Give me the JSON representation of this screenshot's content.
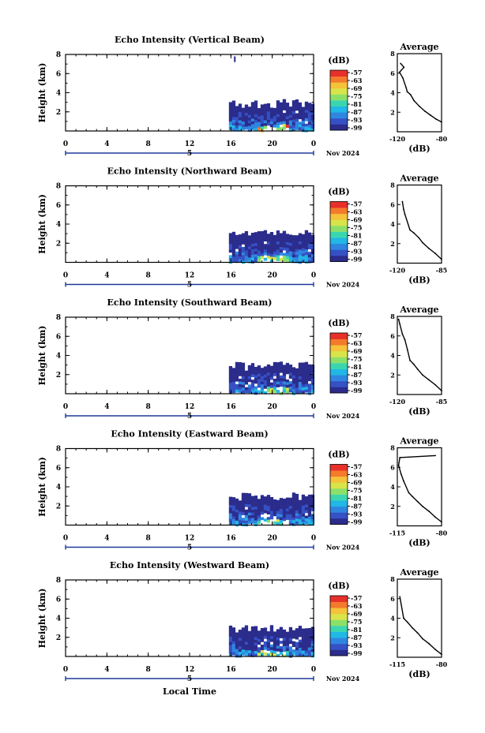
{
  "colors": {
    "scale": [
      "#2b2c8c",
      "#3551c4",
      "#2f86e0",
      "#21b7e6",
      "#3bd6b0",
      "#8ce06a",
      "#d8e44a",
      "#f5c23a",
      "#f47a2c",
      "#e8302a"
    ],
    "text": "#000000",
    "date_bar": "#1f3a9a"
  },
  "shared": {
    "x_ticks": [
      "0",
      "4",
      "8",
      "12",
      "16",
      "20",
      "0"
    ],
    "y_ticks": [
      "2",
      "4",
      "6",
      "8"
    ],
    "ylabel": "Height (km)",
    "colorbar_unit": "(dB)",
    "colorbar_ticks": [
      "-57",
      "-63",
      "-69",
      "-75",
      "-81",
      "-87",
      "-93",
      "-99"
    ],
    "date_label": "Nov 2024",
    "day_label": "5",
    "avg_title": "Average",
    "avg_xlabel": "(dB)",
    "xlabel": "Local Time"
  },
  "chart_data": [
    {
      "type": "heatmap",
      "title": "Echo Intensity (Vertical Beam)",
      "x_unit": "Local time (h)",
      "xlim": [
        0,
        24
      ],
      "ylabel": "Height (km)",
      "ylim": [
        0,
        8
      ],
      "colorbar": {
        "label": "(dB)",
        "range": [
          -99,
          -57
        ]
      },
      "echo_region": {
        "start_time": 15.5,
        "end_time": 24,
        "top_km_range": [
          2.3,
          3.4
        ]
      },
      "isolated_echo": {
        "time": 16.3,
        "height_km": [
          7.2,
          7.8
        ]
      },
      "profile": {
        "title": "Average",
        "xlabel": "(dB)",
        "x_ticks": [
          "-120",
          "-80"
        ],
        "xlim": [
          -120,
          -80
        ],
        "y_ticks": [
          "2",
          "4",
          "6",
          "8"
        ],
        "ylim": [
          0,
          8
        ],
        "points": [
          [
            -80,
            1
          ],
          [
            -85,
            1.3
          ],
          [
            -90,
            1.7
          ],
          [
            -95,
            2.1
          ],
          [
            -100,
            2.6
          ],
          [
            -105,
            3.2
          ],
          [
            -108,
            3.8
          ],
          [
            -111,
            4.1
          ],
          [
            -112,
            4.5
          ],
          [
            -115,
            5.5
          ],
          [
            -118,
            6.1
          ],
          [
            -114,
            6.6
          ],
          [
            -117,
            7.0
          ]
        ]
      }
    },
    {
      "type": "heatmap",
      "title": "Echo Intensity (Northward Beam)",
      "x_unit": "Local time (h)",
      "xlim": [
        0,
        24
      ],
      "ylabel": "Height (km)",
      "ylim": [
        0,
        8
      ],
      "colorbar": {
        "label": "(dB)",
        "range": [
          -99,
          -57
        ]
      },
      "echo_region": {
        "start_time": 15.5,
        "end_time": 24,
        "top_km_range": [
          2.8,
          3.4
        ]
      },
      "profile": {
        "title": "Average",
        "xlabel": "(dB)",
        "x_ticks": [
          "-120",
          "-85"
        ],
        "xlim": [
          -120,
          -85
        ],
        "y_ticks": [
          "2",
          "4",
          "6",
          "8"
        ],
        "ylim": [
          0,
          8
        ],
        "points": [
          [
            -85,
            0.4
          ],
          [
            -90,
            1.0
          ],
          [
            -95,
            1.5
          ],
          [
            -100,
            2.1
          ],
          [
            -103,
            2.6
          ],
          [
            -107,
            3.1
          ],
          [
            -110,
            3.4
          ],
          [
            -114,
            5.0
          ],
          [
            -115,
            5.5
          ],
          [
            -116,
            6.3
          ]
        ]
      }
    },
    {
      "type": "heatmap",
      "title": "Echo Intensity (Southward Beam)",
      "x_unit": "Local time (h)",
      "xlim": [
        0,
        24
      ],
      "ylabel": "Height (km)",
      "ylim": [
        0,
        8
      ],
      "colorbar": {
        "label": "(dB)",
        "range": [
          -99,
          -57
        ]
      },
      "echo_region": {
        "start_time": 15.5,
        "end_time": 24,
        "top_km_range": [
          2.4,
          3.4
        ]
      },
      "profile": {
        "title": "Average",
        "xlabel": "(dB)",
        "x_ticks": [
          "-120",
          "-85"
        ],
        "xlim": [
          -120,
          -85
        ],
        "y_ticks": [
          "2",
          "4",
          "6",
          "8"
        ],
        "ylim": [
          0,
          8
        ],
        "points": [
          [
            -85,
            0.4
          ],
          [
            -90,
            1.0
          ],
          [
            -95,
            1.5
          ],
          [
            -100,
            2.0
          ],
          [
            -104,
            2.6
          ],
          [
            -107,
            3.1
          ],
          [
            -110,
            3.5
          ],
          [
            -112,
            4.6
          ],
          [
            -114,
            5.6
          ],
          [
            -116,
            6.2
          ],
          [
            -118,
            7.2
          ],
          [
            -119,
            7.7
          ]
        ]
      }
    },
    {
      "type": "heatmap",
      "title": "Echo Intensity (Eastward Beam)",
      "x_unit": "Local time (h)",
      "xlim": [
        0,
        24
      ],
      "ylabel": "Height (km)",
      "ylim": [
        0,
        8
      ],
      "colorbar": {
        "label": "(dB)",
        "range": [
          -99,
          -57
        ]
      },
      "echo_region": {
        "start_time": 15.5,
        "end_time": 24,
        "top_km_range": [
          2.5,
          3.4
        ]
      },
      "profile": {
        "title": "Average",
        "xlabel": "(dB)",
        "x_ticks": [
          "-115",
          "-80"
        ],
        "xlim": [
          -115,
          -80
        ],
        "y_ticks": [
          "2",
          "4",
          "6",
          "8"
        ],
        "ylim": [
          0,
          8
        ],
        "points": [
          [
            -80,
            0.4
          ],
          [
            -85,
            0.9
          ],
          [
            -90,
            1.5
          ],
          [
            -95,
            2.0
          ],
          [
            -99,
            2.5
          ],
          [
            -103,
            3.0
          ],
          [
            -106,
            3.4
          ],
          [
            -110,
            4.6
          ],
          [
            -112,
            5.3
          ],
          [
            -114,
            6.2
          ],
          [
            -113,
            7.0
          ],
          [
            -85,
            7.2
          ]
        ]
      }
    },
    {
      "type": "heatmap",
      "title": "Echo Intensity (Westward Beam)",
      "x_unit": "Local time (h)",
      "xlim": [
        0,
        24
      ],
      "ylabel": "Height (km)",
      "ylim": [
        0,
        8
      ],
      "colorbar": {
        "label": "(dB)",
        "range": [
          -99,
          -57
        ]
      },
      "echo_region": {
        "start_time": 15.5,
        "end_time": 24,
        "top_km_range": [
          2.5,
          3.3
        ]
      },
      "profile": {
        "title": "Average",
        "xlabel": "(dB)",
        "x_ticks": [
          "-115",
          "-80"
        ],
        "xlim": [
          -115,
          -80
        ],
        "y_ticks": [
          "2",
          "4",
          "6",
          "8"
        ],
        "ylim": [
          0,
          8
        ],
        "points": [
          [
            -80,
            0.3
          ],
          [
            -85,
            0.8
          ],
          [
            -90,
            1.4
          ],
          [
            -95,
            1.9
          ],
          [
            -99,
            2.5
          ],
          [
            -103,
            3.0
          ],
          [
            -107,
            3.6
          ],
          [
            -110,
            4.0
          ],
          [
            -113,
            6.2
          ]
        ]
      }
    }
  ]
}
